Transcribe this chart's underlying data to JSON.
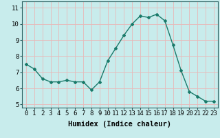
{
  "x": [
    0,
    1,
    2,
    3,
    4,
    5,
    6,
    7,
    8,
    9,
    10,
    11,
    12,
    13,
    14,
    15,
    16,
    17,
    18,
    19,
    20,
    21,
    22,
    23
  ],
  "y": [
    7.5,
    7.2,
    6.6,
    6.4,
    6.4,
    6.5,
    6.4,
    6.4,
    5.9,
    6.4,
    7.7,
    8.5,
    9.3,
    10.0,
    10.5,
    10.4,
    10.6,
    10.2,
    8.7,
    7.1,
    5.8,
    5.5,
    5.2,
    5.2
  ],
  "line_color": "#1a7a6a",
  "marker": "D",
  "marker_size": 2,
  "background_color": "#c8ecec",
  "grid_color": "#e8b8b8",
  "xlabel": "Humidex (Indice chaleur)",
  "ylabel": "",
  "xlim": [
    -0.5,
    23.5
  ],
  "ylim": [
    4.8,
    11.4
  ],
  "yticks": [
    5,
    6,
    7,
    8,
    9,
    10,
    11
  ],
  "xticks": [
    0,
    1,
    2,
    3,
    4,
    5,
    6,
    7,
    8,
    9,
    10,
    11,
    12,
    13,
    14,
    15,
    16,
    17,
    18,
    19,
    20,
    21,
    22,
    23
  ],
  "xlabel_fontsize": 7.5,
  "tick_fontsize": 6.5,
  "line_width": 1.0
}
